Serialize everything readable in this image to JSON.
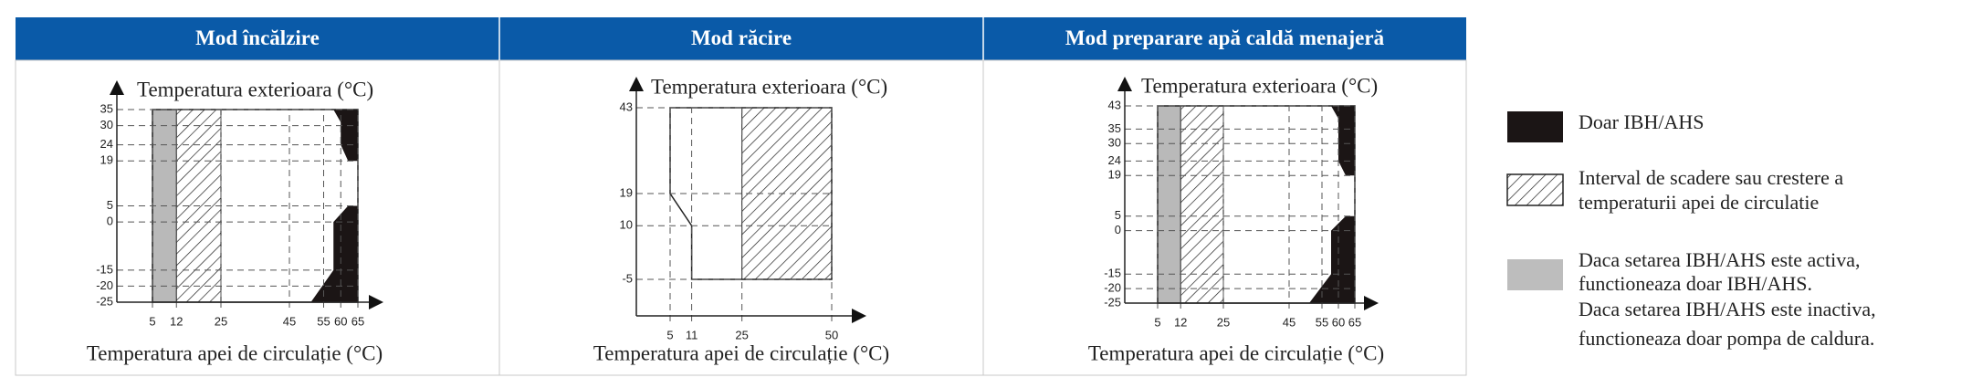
{
  "panels": [
    {
      "title": "Mod încălzire",
      "y_label": "Temperatura exterioara (°C)",
      "x_label": "Temperatura apei de circulație (°C)",
      "yticks": [
        35,
        30,
        24,
        19,
        5,
        0,
        -15,
        -20,
        -25
      ],
      "xticks": [
        5,
        12,
        25,
        45,
        55,
        60,
        65
      ]
    },
    {
      "title": "Mod răcire",
      "y_label": "Temperatura exterioara (°C)",
      "x_label": "Temperatura apei de circulație (°C)",
      "yticks": [
        43,
        19,
        10,
        -5
      ],
      "xticks": [
        5,
        11,
        25,
        50
      ]
    },
    {
      "title": "Mod preparare apă caldă menajeră",
      "y_label": "Temperatura exterioara (°C)",
      "x_label": "Temperatura apei de circulație (°C)",
      "yticks": [
        43,
        35,
        30,
        24,
        19,
        5,
        0,
        -15,
        -20,
        -25
      ],
      "xticks": [
        5,
        12,
        25,
        45,
        55,
        60,
        65
      ]
    }
  ],
  "legend": [
    {
      "lines": [
        "Doar IBH/AHS"
      ]
    },
    {
      "lines": [
        "Interval de scadere sau crestere a",
        "temperaturii apei de circulatie"
      ]
    },
    {
      "lines": [
        "Daca setarea IBH/AHS este activa,",
        "functioneaza doar IBH/AHS.",
        "Daca setarea IBH/AHS este inactiva,",
        "functioneaza doar pompa de caldura."
      ]
    }
  ]
}
